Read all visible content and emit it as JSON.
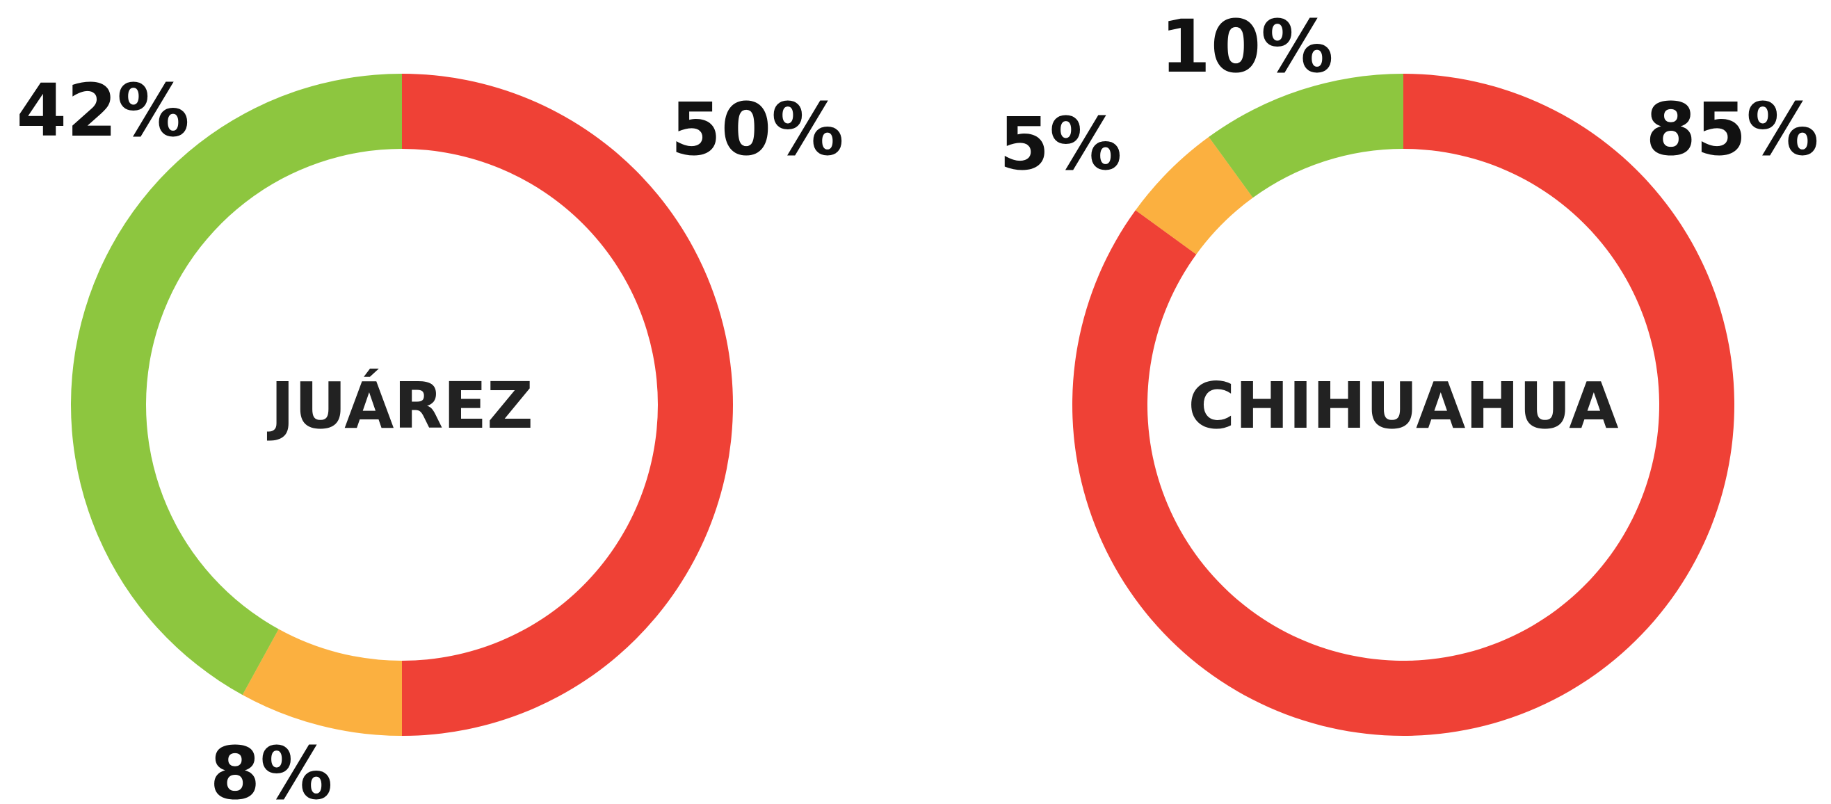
{
  "chart_data": [
    {
      "type": "pie",
      "title": "JUÁREZ",
      "slices": [
        {
          "value": 50,
          "label": "50%",
          "color": "#ef4136"
        },
        {
          "value": 8,
          "label": "8%",
          "color": "#fbb040"
        },
        {
          "value": 42,
          "label": "42%",
          "color": "#8dc63f"
        }
      ]
    },
    {
      "type": "pie",
      "title": "CHIHUAHUA",
      "slices": [
        {
          "value": 85,
          "label": "85%",
          "color": "#ef4136"
        },
        {
          "value": 5,
          "label": "5%",
          "color": "#fbb040"
        },
        {
          "value": 10,
          "label": "10%",
          "color": "#8dc63f"
        }
      ]
    }
  ]
}
